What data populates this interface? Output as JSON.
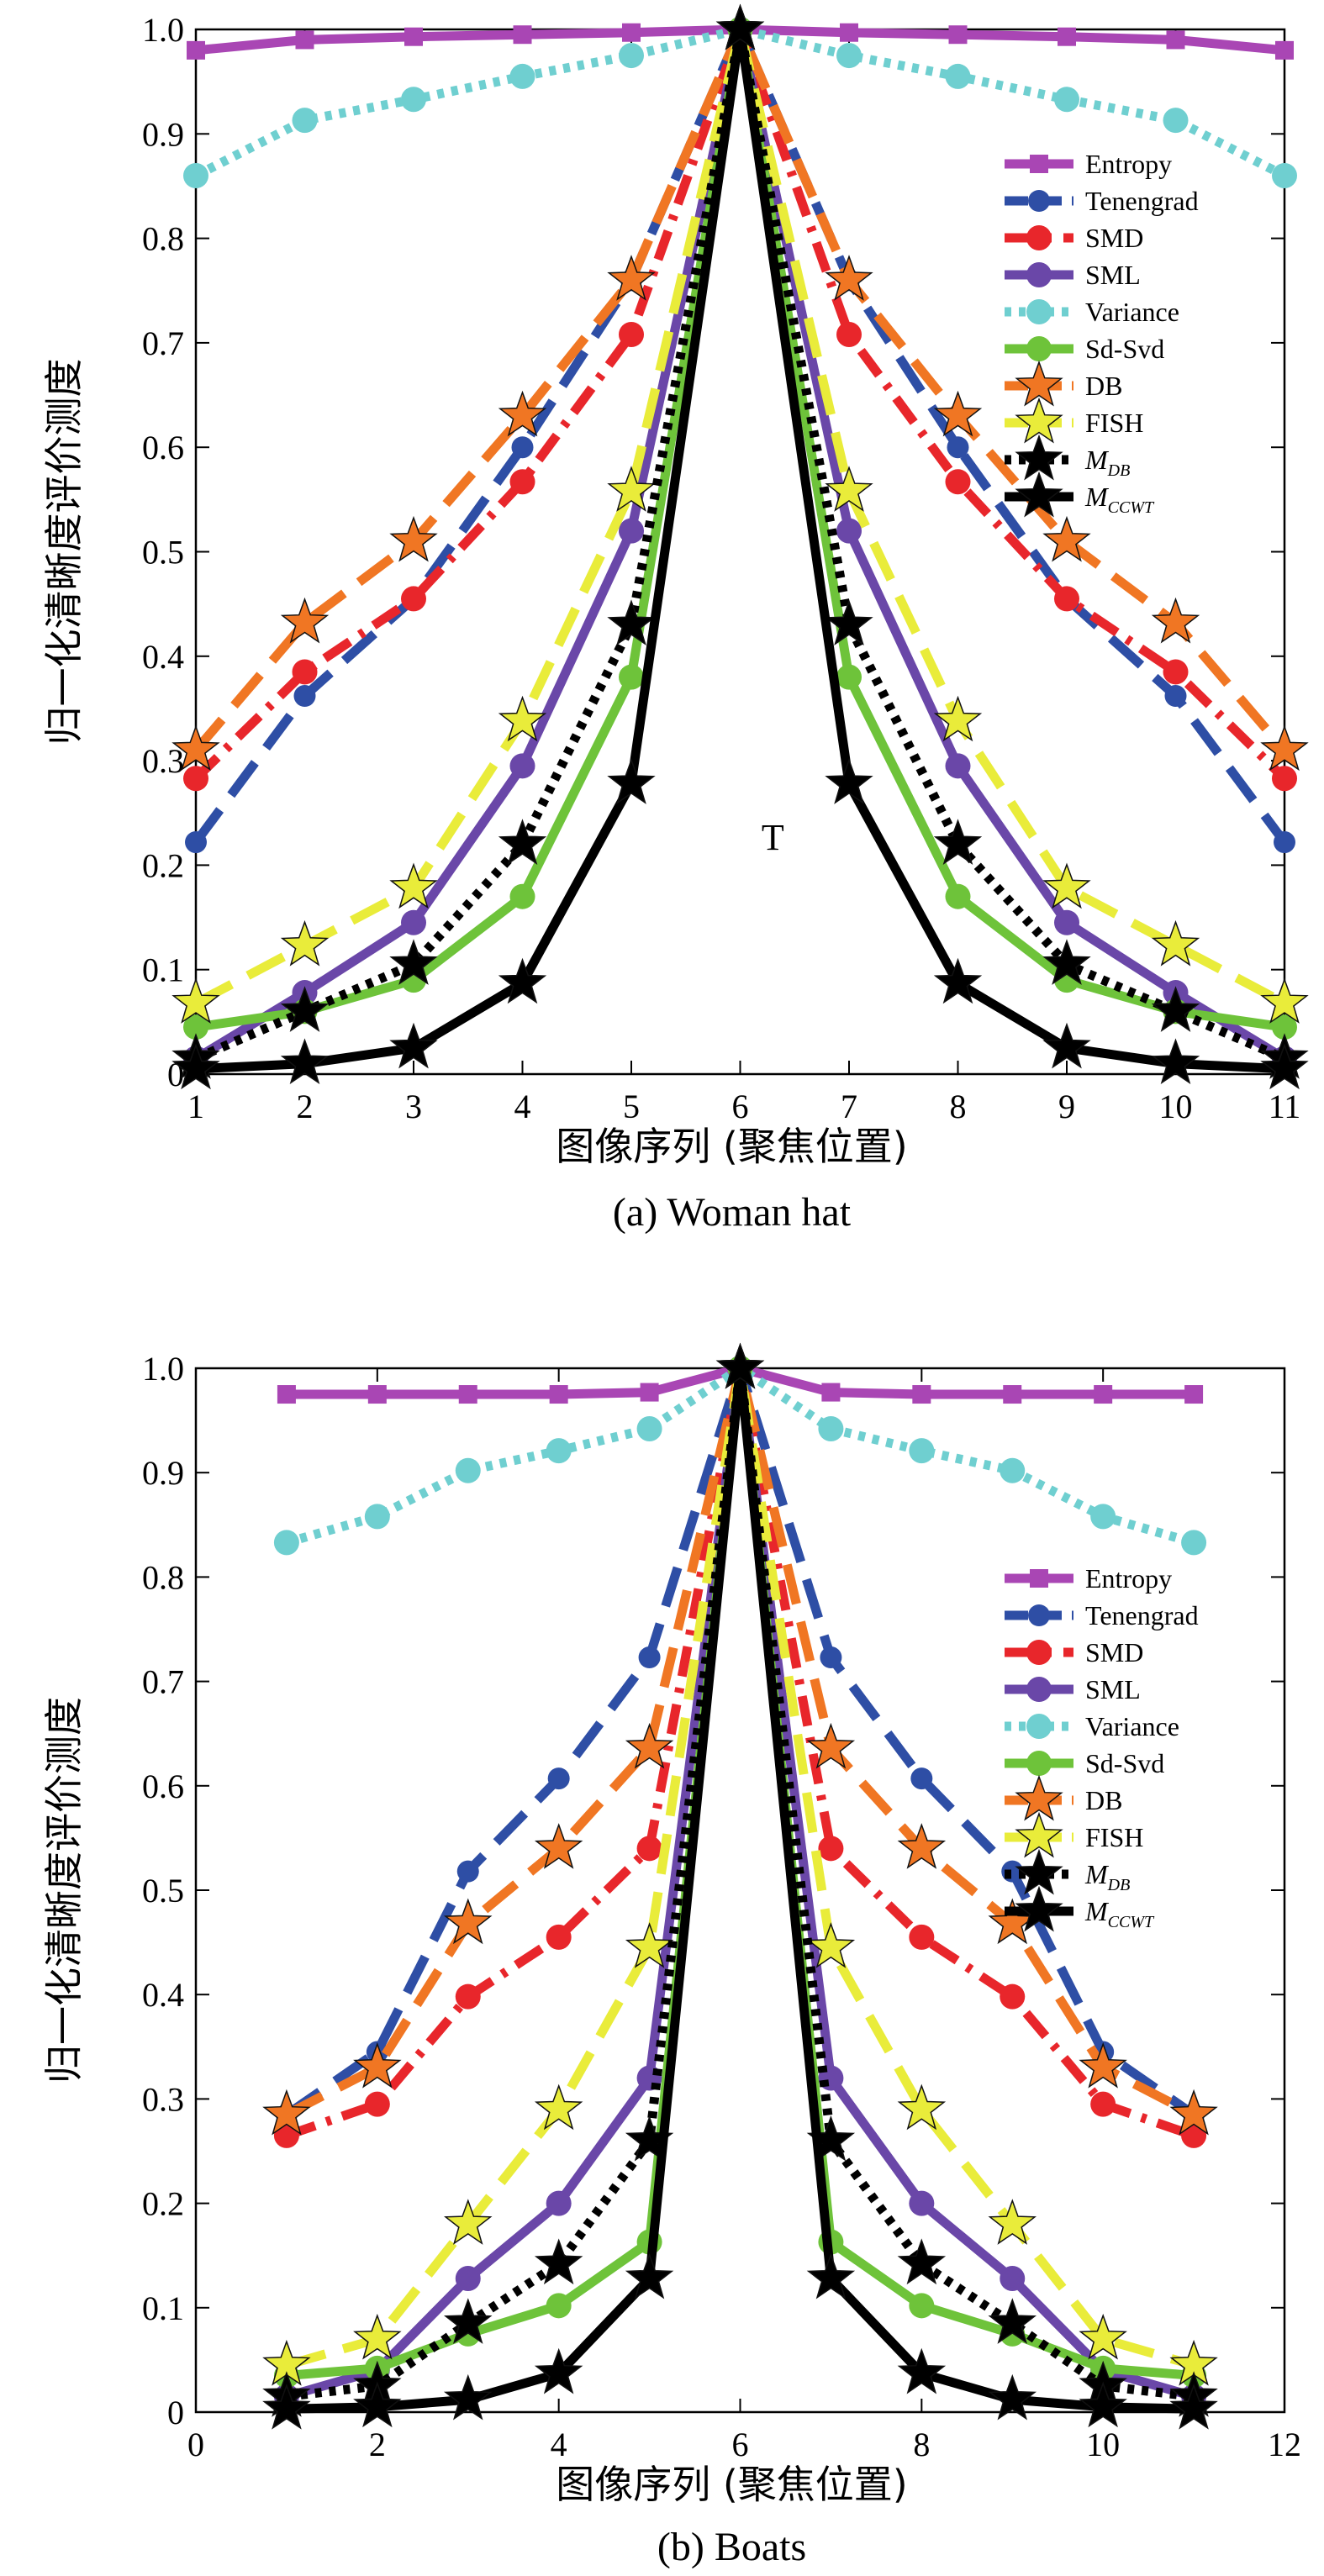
{
  "chart_data": [
    {
      "type": "line",
      "caption": "(a) Woman hat",
      "xlabel": "图像序列 (聚焦位置)",
      "ylabel": "归一化清晰度评价测度",
      "xlim": [
        1,
        11
      ],
      "ylim": [
        0,
        1
      ],
      "xticks": [
        1,
        2,
        3,
        4,
        5,
        6,
        7,
        8,
        9,
        10,
        11
      ],
      "yticks": [
        0,
        0.1,
        0.2,
        0.3,
        0.4,
        0.5,
        0.6,
        0.7,
        0.8,
        0.9,
        1.0
      ],
      "yticklabels": [
        "0",
        "0.1",
        "0.2",
        "0.3",
        "0.4",
        "0.5",
        "0.6",
        "0.7",
        "0.8",
        "0.9",
        "1.0"
      ],
      "annotation": "T",
      "legend_position": "right",
      "x": [
        1,
        2,
        3,
        4,
        5,
        6,
        7,
        8,
        9,
        10,
        11
      ],
      "series": [
        {
          "name": "Entropy",
          "values": [
            0.98,
            0.99,
            0.993,
            0.995,
            0.997,
            1.0,
            0.997,
            0.995,
            0.993,
            0.99,
            0.98
          ]
        },
        {
          "name": "Tenengrad",
          "values": [
            0.222,
            0.362,
            0.455,
            0.6,
            0.76,
            1.0,
            0.76,
            0.6,
            0.455,
            0.362,
            0.222
          ]
        },
        {
          "name": "SMD",
          "values": [
            0.283,
            0.385,
            0.455,
            0.567,
            0.708,
            1.0,
            0.708,
            0.567,
            0.455,
            0.385,
            0.283
          ]
        },
        {
          "name": "SML",
          "values": [
            0.015,
            0.078,
            0.145,
            0.295,
            0.52,
            1.0,
            0.52,
            0.295,
            0.145,
            0.078,
            0.015
          ]
        },
        {
          "name": "Variance",
          "values": [
            0.86,
            0.913,
            0.933,
            0.955,
            0.975,
            1.0,
            0.975,
            0.955,
            0.933,
            0.913,
            0.86
          ]
        },
        {
          "name": "Sd-Svd",
          "values": [
            0.045,
            0.06,
            0.09,
            0.17,
            0.38,
            1.0,
            0.38,
            0.17,
            0.09,
            0.06,
            0.045
          ]
        },
        {
          "name": "DB",
          "values": [
            0.31,
            0.432,
            0.51,
            0.63,
            0.76,
            1.0,
            0.76,
            0.63,
            0.51,
            0.432,
            0.31
          ]
        },
        {
          "name": "FISH",
          "values": [
            0.068,
            0.123,
            0.178,
            0.338,
            0.558,
            1.0,
            0.558,
            0.338,
            0.178,
            0.123,
            0.068
          ]
        },
        {
          "name": "M_DB",
          "name_main": "M",
          "name_sub": "DB",
          "values": [
            0.015,
            0.06,
            0.105,
            0.22,
            0.43,
            1.0,
            0.43,
            0.22,
            0.105,
            0.06,
            0.015
          ]
        },
        {
          "name": "M_CCWT",
          "name_main": "M",
          "name_sub": "CCWT",
          "values": [
            0.005,
            0.01,
            0.025,
            0.087,
            0.278,
            1.0,
            0.278,
            0.087,
            0.025,
            0.01,
            0.005
          ]
        }
      ]
    },
    {
      "type": "line",
      "caption": "(b) Boats",
      "xlabel": "图像序列 (聚焦位置)",
      "ylabel": "归一化清晰度评价测度",
      "xlim": [
        0,
        12
      ],
      "ylim": [
        0,
        1
      ],
      "xticks": [
        0,
        2,
        4,
        6,
        8,
        10,
        12
      ],
      "yticks": [
        0,
        0.1,
        0.2,
        0.3,
        0.4,
        0.5,
        0.6,
        0.7,
        0.8,
        0.9,
        1.0
      ],
      "yticklabels": [
        "0",
        "0.1",
        "0.2",
        "0.3",
        "0.4",
        "0.5",
        "0.6",
        "0.7",
        "0.8",
        "0.9",
        "1.0"
      ],
      "legend_position": "right",
      "x": [
        1,
        2,
        3,
        4,
        5,
        6,
        7,
        8,
        9,
        10,
        11
      ],
      "series": [
        {
          "name": "Entropy",
          "values": [
            0.975,
            0.975,
            0.975,
            0.975,
            0.977,
            1.0,
            0.977,
            0.975,
            0.975,
            0.975,
            0.975
          ]
        },
        {
          "name": "Tenengrad",
          "values": [
            0.285,
            0.345,
            0.518,
            0.607,
            0.723,
            1.0,
            0.723,
            0.607,
            0.518,
            0.345,
            0.285
          ]
        },
        {
          "name": "SMD",
          "values": [
            0.265,
            0.295,
            0.398,
            0.455,
            0.54,
            1.0,
            0.54,
            0.455,
            0.398,
            0.295,
            0.265
          ]
        },
        {
          "name": "SML",
          "values": [
            0.015,
            0.04,
            0.128,
            0.2,
            0.32,
            1.0,
            0.32,
            0.2,
            0.128,
            0.04,
            0.015
          ]
        },
        {
          "name": "Variance",
          "values": [
            0.833,
            0.858,
            0.902,
            0.921,
            0.942,
            1.0,
            0.942,
            0.921,
            0.902,
            0.858,
            0.833
          ]
        },
        {
          "name": "Sd-Svd",
          "values": [
            0.035,
            0.042,
            0.075,
            0.102,
            0.163,
            1.0,
            0.163,
            0.102,
            0.075,
            0.042,
            0.035
          ]
        },
        {
          "name": "DB",
          "values": [
            0.285,
            0.33,
            0.468,
            0.54,
            0.636,
            1.0,
            0.636,
            0.54,
            0.468,
            0.33,
            0.285
          ]
        },
        {
          "name": "FISH",
          "values": [
            0.045,
            0.07,
            0.18,
            0.29,
            0.445,
            1.0,
            0.445,
            0.29,
            0.18,
            0.07,
            0.045
          ]
        },
        {
          "name": "M_DB",
          "name_main": "M",
          "name_sub": "DB",
          "values": [
            0.015,
            0.025,
            0.085,
            0.142,
            0.26,
            1.0,
            0.26,
            0.142,
            0.085,
            0.025,
            0.015
          ]
        },
        {
          "name": "M_CCWT",
          "name_main": "M",
          "name_sub": "CCWT",
          "values": [
            0.003,
            0.005,
            0.012,
            0.037,
            0.128,
            1.0,
            0.128,
            0.037,
            0.012,
            0.005,
            0.003
          ]
        }
      ]
    }
  ],
  "styles": {
    "Entropy": {
      "color": "#a946b4",
      "dash": "solid",
      "marker": "square"
    },
    "Tenengrad": {
      "color": "#2e4ea5",
      "dash": "dashed",
      "marker": "circle-small"
    },
    "SMD": {
      "color": "#e8262b",
      "dash": "dashdot",
      "marker": "circle"
    },
    "SML": {
      "color": "#6a47a8",
      "dash": "solid",
      "marker": "circle"
    },
    "Variance": {
      "color": "#6fcfd0",
      "dash": "dotted",
      "marker": "circle"
    },
    "Sd-Svd": {
      "color": "#6ec33a",
      "dash": "solid",
      "marker": "circle"
    },
    "DB": {
      "color": "#f07623",
      "dash": "dashed",
      "marker": "star"
    },
    "FISH": {
      "color": "#e9ec3a",
      "dash": "dashed",
      "marker": "star"
    },
    "M_DB": {
      "color": "#000000",
      "dash": "dotted",
      "marker": "star"
    },
    "M_CCWT": {
      "color": "#000000",
      "dash": "solid",
      "marker": "star"
    }
  }
}
